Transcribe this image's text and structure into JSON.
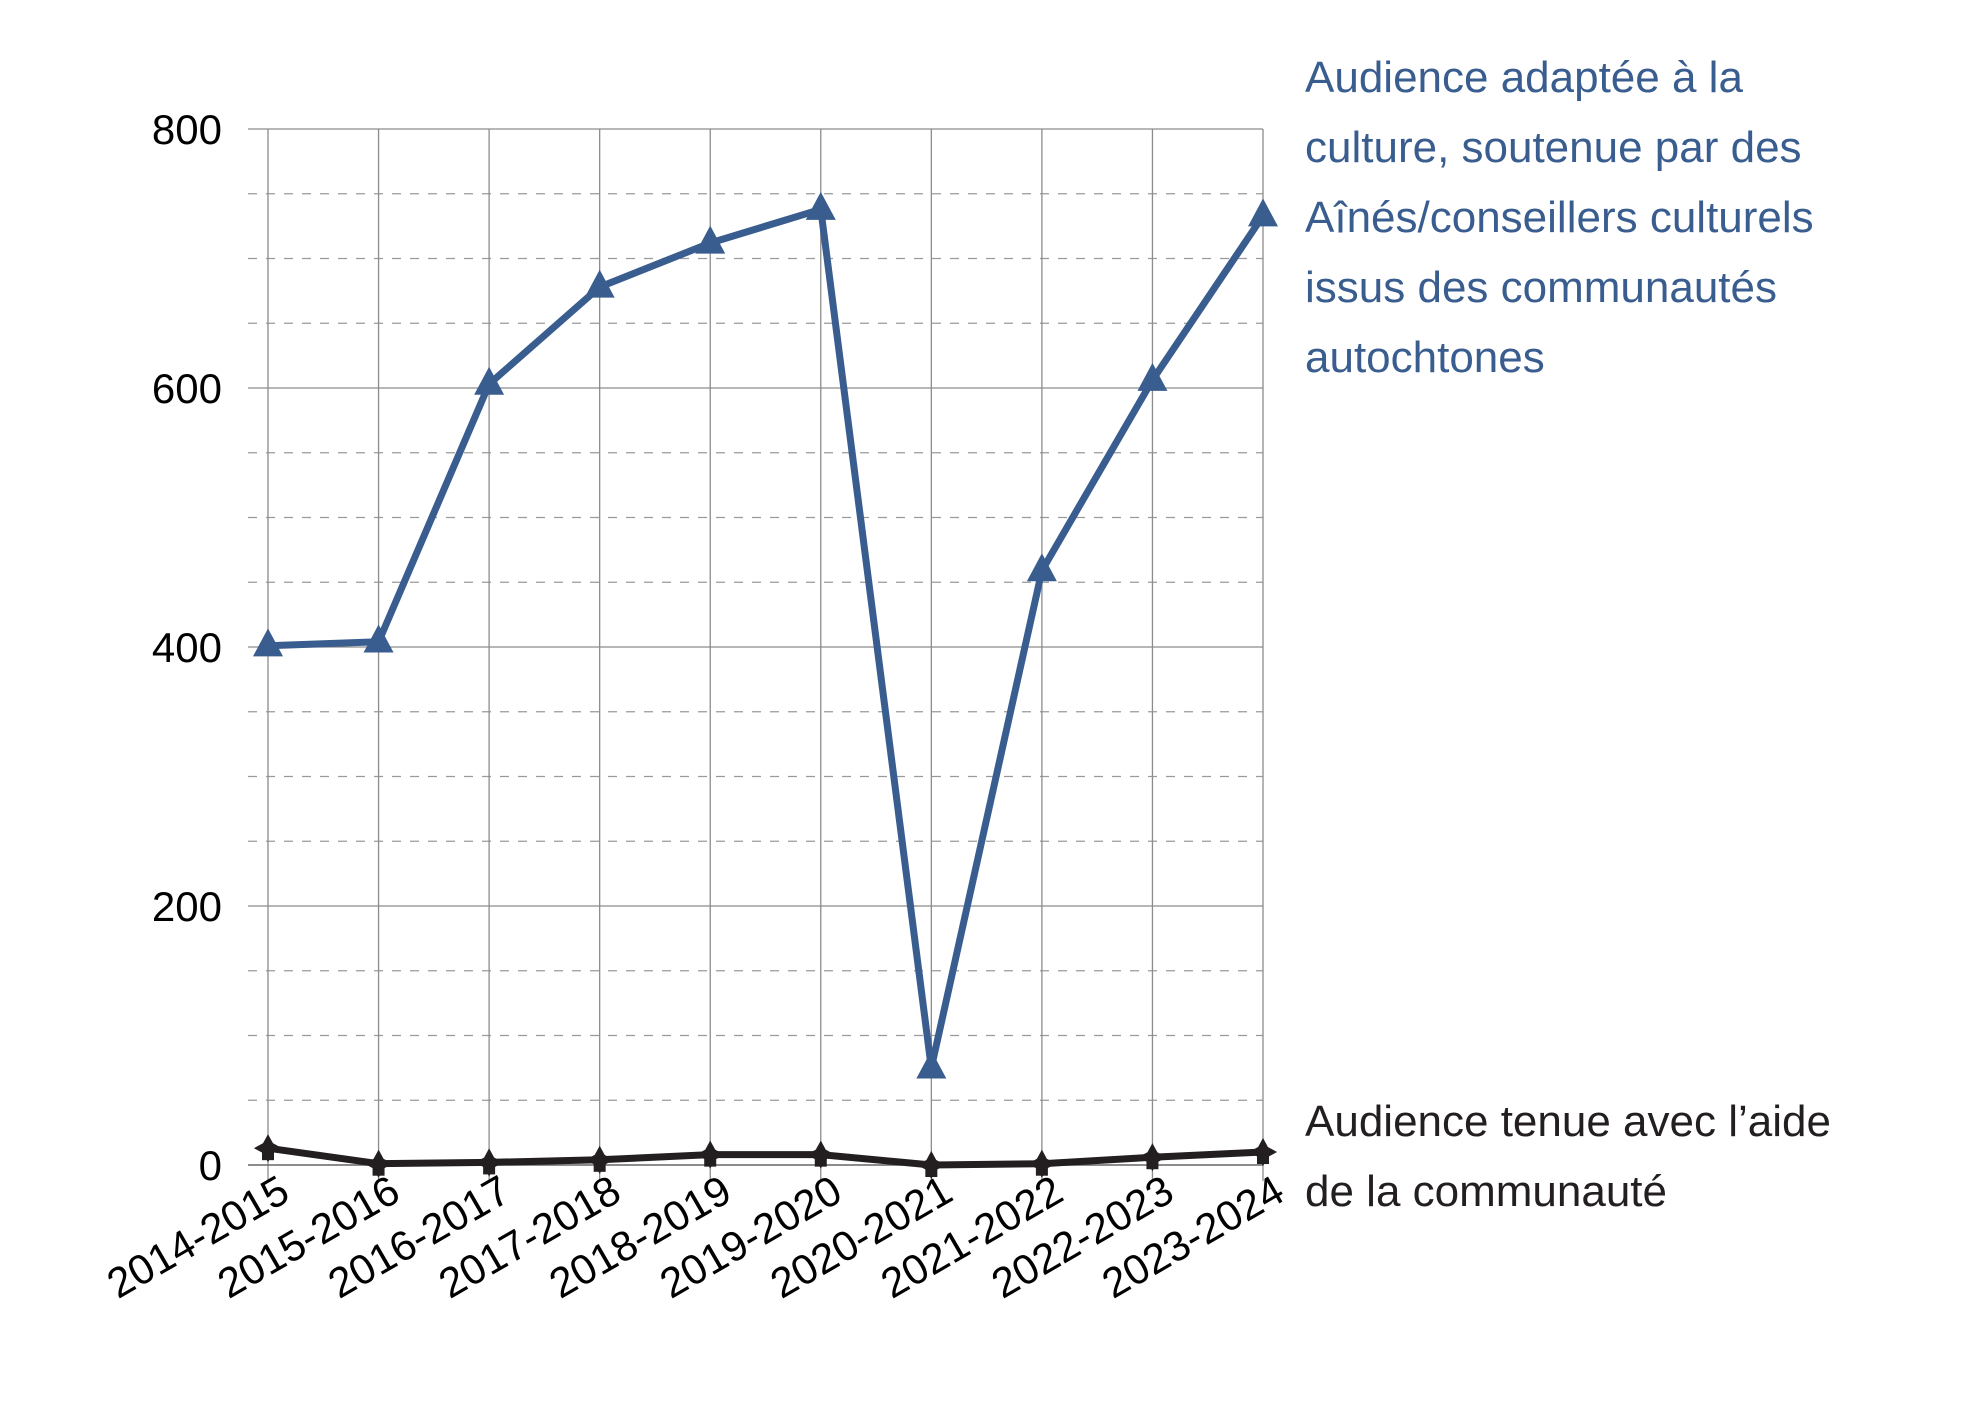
{
  "chart_data": {
    "type": "line",
    "categories": [
      "2014-2015",
      "2015-2016",
      "2016-2017",
      "2017-2018",
      "2018-2019",
      "2019-2020",
      "2020-2021",
      "2021-2022",
      "2022-2023",
      "2023-2024"
    ],
    "ylim": [
      0,
      800
    ],
    "yticks": [
      0,
      200,
      400,
      600,
      800
    ],
    "ytick_labels": [
      "0",
      "200",
      "400",
      "600",
      "800"
    ],
    "minor_step": 50,
    "grid": true,
    "legend": "direct labels at right of lines",
    "series": [
      {
        "name": "Audience adaptée à la culture, soutenue par des Aînés/conseillers culturels issus des communautés autochtones",
        "label_lines": [
          "Audience adaptée à la",
          "culture, soutenue par des",
          "Aînés/conseillers culturels",
          "issus des communautés",
          "autochtones"
        ],
        "values": [
          401,
          404,
          603,
          678,
          712,
          738,
          75,
          459,
          606,
          733
        ],
        "color": "#3a5d8f",
        "marker": "triangle"
      },
      {
        "name": "Audience tenue avec l’aide de la communauté",
        "label_lines": [
          "Audience tenue avec l’aide",
          "de la communauté"
        ],
        "values": [
          13,
          1,
          2,
          4,
          8,
          8,
          0,
          1,
          6,
          10
        ],
        "color": "#231f20",
        "marker": "star"
      }
    ]
  }
}
